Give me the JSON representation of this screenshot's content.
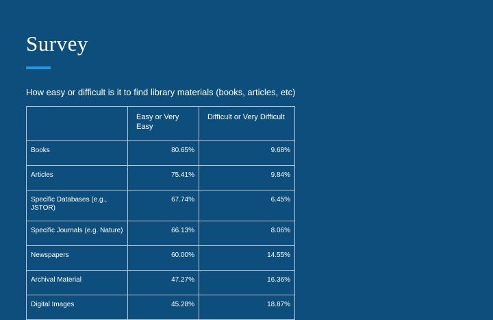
{
  "slide": {
    "title": "Survey",
    "accent_color": "#1e9be0",
    "background_color": "#0e4e7c",
    "question": "How easy or difficult is it to find library materials (books, articles, etc)"
  },
  "table": {
    "headers": [
      "",
      "Easy or Very Easy",
      "Difficult or Very Difficult"
    ],
    "rows": [
      {
        "label": "Books",
        "easy": "80.65%",
        "difficult": "9.68%"
      },
      {
        "label": "Articles",
        "easy": "75.41%",
        "difficult": "9.84%"
      },
      {
        "label": "Specific Databases (e.g., JSTOR)",
        "easy": "67.74%",
        "difficult": "6.45%"
      },
      {
        "label": "Specific Journals (e.g. Nature)",
        "easy": "66.13%",
        "difficult": "8.06%"
      },
      {
        "label": "Newspapers",
        "easy": "60.00%",
        "difficult": "14.55%"
      },
      {
        "label": "Archival Material",
        "easy": "47.27%",
        "difficult": "16.36%"
      },
      {
        "label": "Digital Images",
        "easy": "45.28%",
        "difficult": "18.87%"
      }
    ]
  }
}
